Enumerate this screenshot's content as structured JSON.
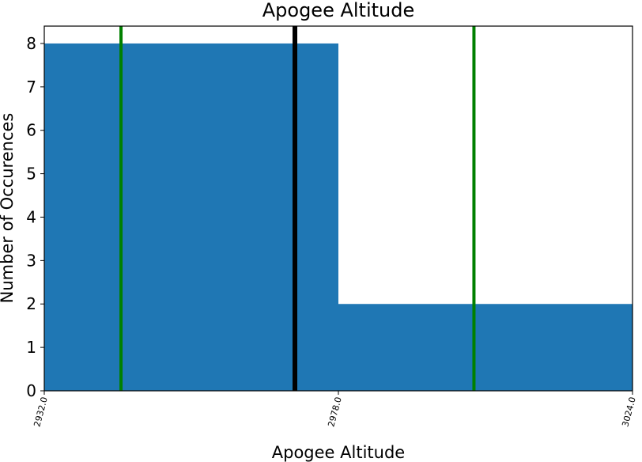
{
  "chart_data": {
    "type": "bar",
    "title": "Apogee Altitude",
    "xlabel": "Apogee Altitude",
    "ylabel": "Number of Occurences",
    "bins": [
      {
        "start": 2932.0,
        "end": 2978.0,
        "count": 8
      },
      {
        "start": 2978.0,
        "end": 3024.0,
        "count": 2
      }
    ],
    "xlim": [
      2932.0,
      3024.0
    ],
    "ylim": [
      0,
      8.4
    ],
    "x_ticks": [
      "2932.0",
      "2978.0",
      "3024.0"
    ],
    "y_ticks": [
      0,
      1,
      2,
      3,
      4,
      5,
      6,
      7,
      8
    ],
    "vertical_lines": [
      {
        "x": 2944.0,
        "color": "#008000"
      },
      {
        "x": 2971.2,
        "color": "#000000"
      },
      {
        "x": 2999.2,
        "color": "#008000"
      }
    ],
    "bar_color": "#1f77b4",
    "grid": false
  }
}
